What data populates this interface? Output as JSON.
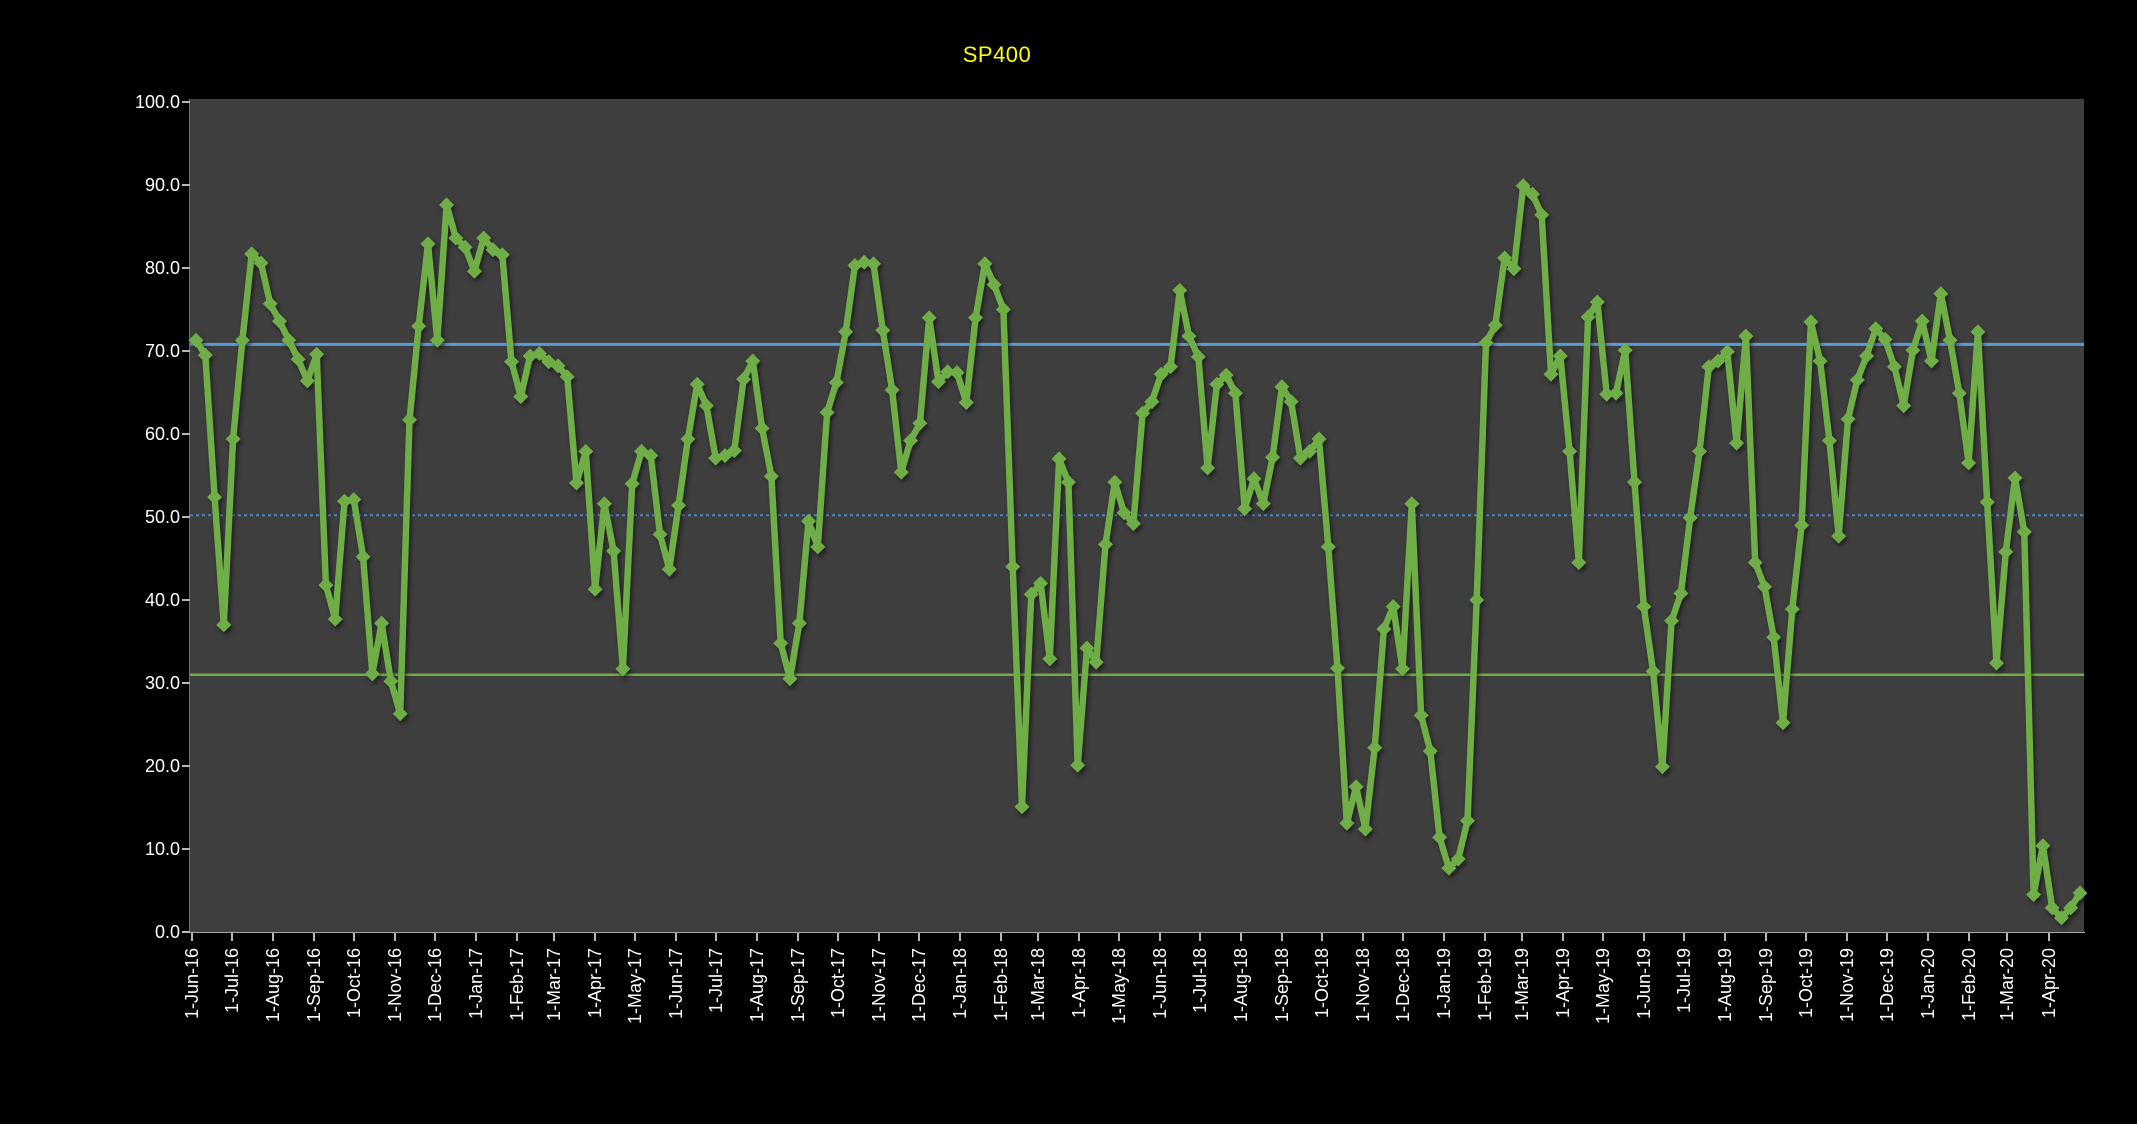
{
  "page": {
    "background_color": "#000000",
    "plot_background_color": "#3e3e3e"
  },
  "chart_data": {
    "type": "line",
    "title": "SP400",
    "title_color": "#ffff00",
    "xlabel": "",
    "ylabel": "",
    "ylim": [
      0,
      100
    ],
    "grid": false,
    "legend_position": "none",
    "y_ticks": [
      100,
      90,
      80,
      70,
      60,
      50,
      40,
      30,
      20,
      10,
      0
    ],
    "y_tick_labels": [
      "100.0",
      "90.0",
      "80.0",
      "70.0",
      "60.0",
      "50.0",
      "40.0",
      "30.0",
      "20.0",
      "10.0",
      "0.0"
    ],
    "x_tick_labels": [
      "1-Jun-16",
      "1-Jul-16",
      "1-Aug-16",
      "1-Sep-16",
      "1-Oct-16",
      "1-Nov-16",
      "1-Dec-16",
      "1-Jan-17",
      "1-Feb-17",
      "1-Mar-17",
      "1-Apr-17",
      "1-May-17",
      "1-Jun-17",
      "1-Jul-17",
      "1-Aug-17",
      "1-Sep-17",
      "1-Oct-17",
      "1-Nov-17",
      "1-Dec-17",
      "1-Jan-18",
      "1-Feb-18",
      "1-Mar-18",
      "1-Apr-18",
      "1-May-18",
      "1-Jun-18",
      "1-Jul-18",
      "1-Aug-18",
      "1-Sep-18",
      "1-Oct-18",
      "1-Nov-18",
      "1-Dec-18",
      "1-Jan-19",
      "1-Feb-19",
      "1-Mar-19",
      "1-Apr-19",
      "1-May-19",
      "1-Jun-19",
      "1-Jul-19",
      "1-Aug-19",
      "1-Sep-19",
      "1-Oct-19",
      "1-Nov-19",
      "1-Dec-19",
      "1-Jan-20",
      "1-Feb-20",
      "1-Mar-20",
      "1-Apr-20"
    ],
    "x_start_date": "2016-06-03",
    "x_interval_days": 7,
    "reference_lines": [
      {
        "name": "upper-band",
        "value": 70.8,
        "style": "solid",
        "color": "#5b9bd5",
        "width": 3
      },
      {
        "name": "mid-band",
        "value": 50.2,
        "style": "dotted",
        "color": "#4f81bd",
        "width": 2
      },
      {
        "name": "lower-band",
        "value": 31.0,
        "style": "solid",
        "color": "#70ad47",
        "width": 2.5
      }
    ],
    "series": [
      {
        "name": "SP400",
        "color": "#6fad46",
        "marker": "diamond",
        "values": [
          71.3,
          69.5,
          52.4,
          37.0,
          59.4,
          71.3,
          81.7,
          80.6,
          75.7,
          73.6,
          71.3,
          69.0,
          66.4,
          69.6,
          41.8,
          37.7,
          51.9,
          52.1,
          45.2,
          31.1,
          37.2,
          30.2,
          26.3,
          61.7,
          73.0,
          82.9,
          71.3,
          87.6,
          83.6,
          82.5,
          79.6,
          83.6,
          82.2,
          81.6,
          68.7,
          64.5,
          69.4,
          69.7,
          68.7,
          68.2,
          66.9,
          54.1,
          57.9,
          41.3,
          51.6,
          45.9,
          31.7,
          54.0,
          57.9,
          57.4,
          47.9,
          43.7,
          51.4,
          59.4,
          66.0,
          63.4,
          57.1,
          57.4,
          58.0,
          66.6,
          68.8,
          60.7,
          54.9,
          34.8,
          30.5,
          37.2,
          49.5,
          46.4,
          62.6,
          66.2,
          72.3,
          80.3,
          80.7,
          80.5,
          72.5,
          65.3,
          55.4,
          59.2,
          61.3,
          74.0,
          66.3,
          67.5,
          67.4,
          63.8,
          74.0,
          80.5,
          78.0,
          75.0,
          44.0,
          15.1,
          40.7,
          42.0,
          32.9,
          57.0,
          54.2,
          20.1,
          34.2,
          32.5,
          46.7,
          54.2,
          50.5,
          49.2,
          62.5,
          63.9,
          67.2,
          68.1,
          77.3,
          71.8,
          69.3,
          55.9,
          66.0,
          67.1,
          64.9,
          51.0,
          54.6,
          51.6,
          57.2,
          65.7,
          63.9,
          57.1,
          57.9,
          59.4,
          46.4,
          31.8,
          13.1,
          17.5,
          12.4,
          22.2,
          36.5,
          39.2,
          31.7,
          51.6,
          26.1,
          21.8,
          11.4,
          7.7,
          8.8,
          13.4,
          40.0,
          71.0,
          73.1,
          81.2,
          79.9,
          89.9,
          88.9,
          86.4,
          67.2,
          69.4,
          57.9,
          44.5,
          74.1,
          75.9,
          64.8,
          64.9,
          70.1,
          54.2,
          39.2,
          31.4,
          19.9,
          37.5,
          40.8,
          49.9,
          57.9,
          68.1,
          68.8,
          69.9,
          58.9,
          71.8,
          44.5,
          41.6,
          35.5,
          25.2,
          38.9,
          49.0,
          73.5,
          68.8,
          59.2,
          47.7,
          61.8,
          66.5,
          69.4,
          72.7,
          71.4,
          68.1,
          63.4,
          70.1,
          73.6,
          68.8,
          76.9,
          71.3,
          64.9,
          56.5,
          72.3,
          51.8,
          32.4,
          45.8,
          54.7,
          48.2,
          4.5,
          10.4,
          2.9,
          1.7,
          2.9,
          4.7
        ]
      }
    ]
  }
}
